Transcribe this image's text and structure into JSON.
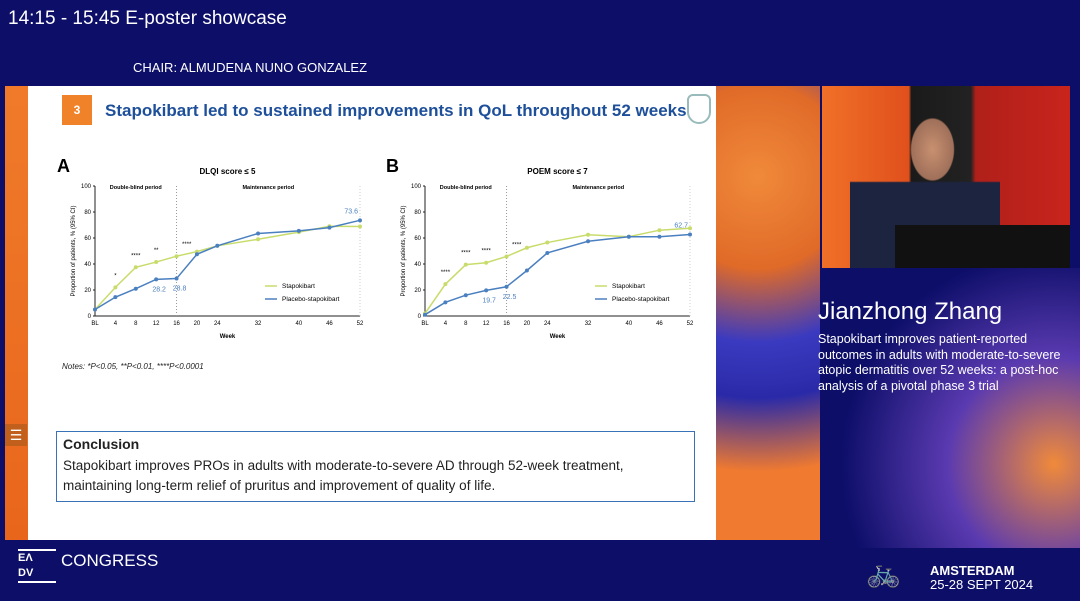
{
  "header": {
    "session": "14:15 - 15:45 E-poster showcase",
    "chair": "CHAIR: ALMUDENA NUNO GONZALEZ"
  },
  "slide": {
    "number": "3",
    "title": "Stapokibart led to sustained improvements in QoL throughout 52 weeks",
    "notes": "Notes: *P<0.05, **P<0.01, ****P<0.0001",
    "conclusion": {
      "heading": "Conclusion",
      "text": "Stapokibart improves PROs in adults with moderate-to-severe AD through 52-week treatment, maintaining long-term relief of pruritus and improvement of quality of life."
    }
  },
  "speaker": {
    "name": "Jianzhong Zhang",
    "talk": "Stapokibart improves patient-reported outcomes in adults with moderate-to-severe atopic dermatitis over 52 weeks: a post-hoc analysis of a pivotal phase 3 trial"
  },
  "footer": {
    "logo": "EA DV",
    "congress": "CONGRESS",
    "city": "AMSTERDAM",
    "dates": "25-28 SEPT 2024"
  },
  "colors": {
    "stapokibart": "#c8dc6c",
    "placebo": "#4a7fc0",
    "accent": "#f0822a",
    "title": "#1d4f9a"
  },
  "chart_data": [
    {
      "panel": "A",
      "type": "line",
      "title": "DLQI score ≤ 5",
      "xlabel": "Week",
      "ylabel": "Proportion of patients, % (95% CI)",
      "ylim": [
        0,
        100
      ],
      "yticks": [
        0,
        20,
        40,
        60,
        80,
        100
      ],
      "x": [
        0,
        4,
        8,
        12,
        16,
        20,
        24,
        32,
        40,
        46,
        52
      ],
      "xtick_labels": [
        "BL",
        "4",
        "8",
        "12",
        "16",
        "20",
        "24",
        "32",
        "40",
        "46",
        "52"
      ],
      "periods": [
        "Double-blind period",
        "Maintenance period"
      ],
      "legend": "bottom-right",
      "series": [
        {
          "name": "Stapokibart",
          "values": [
            5,
            22,
            37.5,
            41.5,
            46,
            49.5,
            54,
            59,
            64.5,
            69,
            68.8
          ]
        },
        {
          "name": "Placebo-stapokibart",
          "values": [
            5,
            14.5,
            21,
            28.2,
            28.8,
            47.5,
            54,
            63.5,
            65.5,
            68,
            73.6
          ]
        }
      ],
      "data_labels": [
        {
          "x": 12,
          "text": "28.2"
        },
        {
          "x": 16,
          "text": "28.8"
        },
        {
          "x": 52,
          "text": "73.6"
        }
      ],
      "significance": [
        {
          "x": 4,
          "text": "*"
        },
        {
          "x": 8,
          "text": "****"
        },
        {
          "x": 12,
          "text": "**"
        },
        {
          "x": 18,
          "text": "****"
        }
      ]
    },
    {
      "panel": "B",
      "type": "line",
      "title": "POEM score ≤ 7",
      "xlabel": "Week",
      "ylabel": "Proportion of patients, % (95% CI)",
      "ylim": [
        0,
        100
      ],
      "yticks": [
        0,
        20,
        40,
        60,
        80,
        100
      ],
      "x": [
        0,
        4,
        8,
        12,
        16,
        20,
        24,
        32,
        40,
        46,
        52
      ],
      "xtick_labels": [
        "BL",
        "4",
        "8",
        "12",
        "16",
        "20",
        "24",
        "32",
        "40",
        "46",
        "52"
      ],
      "periods": [
        "Double-blind period",
        "Maintenance period"
      ],
      "legend": "bottom-right",
      "series": [
        {
          "name": "Stapokibart",
          "values": [
            2,
            24.5,
            39.5,
            41,
            45.8,
            52.5,
            56.5,
            62.5,
            61,
            66,
            67.5
          ]
        },
        {
          "name": "Placebo-stapokibart",
          "values": [
            1,
            10.5,
            16,
            19.7,
            22.5,
            35,
            48.5,
            57.5,
            61,
            61,
            62.7
          ]
        }
      ],
      "data_labels": [
        {
          "x": 12,
          "text": "19.7"
        },
        {
          "x": 16,
          "text": "22.5"
        },
        {
          "x": 52,
          "text": "62.7"
        }
      ],
      "significance": [
        {
          "x": 4,
          "text": "****"
        },
        {
          "x": 8,
          "text": "****"
        },
        {
          "x": 12,
          "text": "****"
        },
        {
          "x": 18,
          "text": "****"
        }
      ]
    }
  ]
}
